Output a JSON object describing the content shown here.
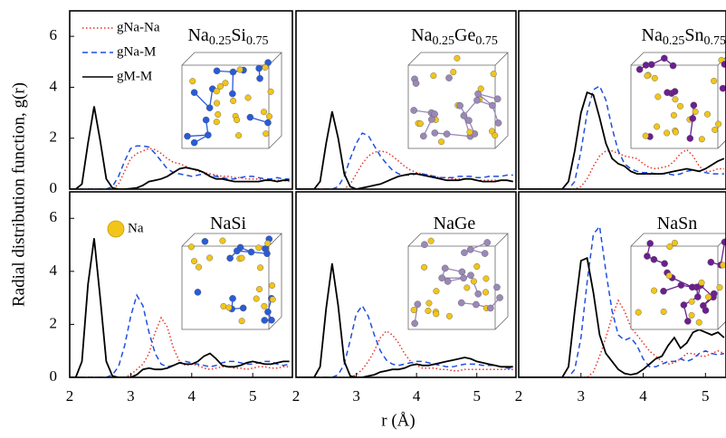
{
  "xlabel": "r (Å)",
  "ylabel": "Radial distribution function, g(r)",
  "chart_data": [
    {
      "type": "line",
      "title": [
        {
          "text": "Na"
        },
        {
          "text": "0.25",
          "sub": true
        },
        {
          "text": "Si"
        },
        {
          "text": "0.75",
          "sub": true
        }
      ],
      "xlim": [
        2,
        5.65
      ],
      "ylim": [
        0,
        7
      ],
      "yticks": [
        0,
        2,
        4,
        6
      ],
      "x": [
        2.0,
        2.1,
        2.2,
        2.3,
        2.4,
        2.5,
        2.6,
        2.7,
        2.8,
        2.9,
        3.0,
        3.1,
        3.2,
        3.3,
        3.4,
        3.5,
        3.6,
        3.7,
        3.8,
        3.9,
        4.0,
        4.1,
        4.2,
        4.3,
        4.4,
        4.5,
        4.6,
        4.7,
        4.8,
        4.9,
        5.0,
        5.1,
        5.2,
        5.3,
        5.4,
        5.5,
        5.6
      ],
      "series": [
        {
          "name": "gNa-Na",
          "color": "#e8322a",
          "linestyle": "dotted",
          "values": [
            0,
            0,
            0,
            0,
            0,
            0,
            0,
            0,
            0.2,
            0.7,
            1.2,
            1.4,
            1.5,
            1.6,
            1.55,
            1.4,
            1.2,
            1.05,
            1.0,
            0.9,
            0.8,
            0.7,
            0.65,
            0.6,
            0.55,
            0.5,
            0.5,
            0.45,
            0.45,
            0.4,
            0.4,
            0.4,
            0.35,
            0.35,
            0.35,
            0.35,
            0.3
          ]
        },
        {
          "name": "gNa-M",
          "color": "#1f4fe0",
          "linestyle": "dashed",
          "values": [
            0,
            0,
            0,
            0,
            0,
            0,
            0,
            0.1,
            0.5,
            1.1,
            1.6,
            1.7,
            1.7,
            1.65,
            1.4,
            1.1,
            0.8,
            0.65,
            0.6,
            0.55,
            0.5,
            0.55,
            0.6,
            0.55,
            0.5,
            0.45,
            0.4,
            0.4,
            0.45,
            0.5,
            0.5,
            0.45,
            0.4,
            0.4,
            0.45,
            0.4,
            0.4
          ]
        },
        {
          "name": "gM-M",
          "color": "#000000",
          "linestyle": "solid",
          "values": [
            0,
            0,
            0.2,
            1.8,
            3.25,
            1.9,
            0.4,
            0.05,
            0,
            0,
            0.02,
            0.05,
            0.15,
            0.3,
            0.35,
            0.4,
            0.5,
            0.65,
            0.8,
            0.85,
            0.8,
            0.75,
            0.65,
            0.5,
            0.4,
            0.4,
            0.35,
            0.3,
            0.3,
            0.3,
            0.3,
            0.3,
            0.35,
            0.35,
            0.3,
            0.35,
            0.35
          ]
        }
      ]
    },
    {
      "type": "line",
      "title": [
        {
          "text": "Na"
        },
        {
          "text": "0.25",
          "sub": true
        },
        {
          "text": "Ge"
        },
        {
          "text": "0.75",
          "sub": true
        }
      ],
      "xlim": [
        2,
        5.65
      ],
      "ylim": [
        0,
        7
      ],
      "x": [
        2.0,
        2.1,
        2.2,
        2.3,
        2.4,
        2.5,
        2.6,
        2.7,
        2.8,
        2.9,
        3.0,
        3.1,
        3.2,
        3.3,
        3.4,
        3.5,
        3.6,
        3.7,
        3.8,
        3.9,
        4.0,
        4.1,
        4.2,
        4.3,
        4.4,
        4.5,
        4.6,
        4.7,
        4.8,
        4.9,
        5.0,
        5.1,
        5.2,
        5.3,
        5.4,
        5.5,
        5.6
      ],
      "series": [
        {
          "color": "#e8322a",
          "linestyle": "dotted",
          "values": [
            0,
            0,
            0,
            0,
            0,
            0,
            0,
            0,
            0,
            0.2,
            0.6,
            1.0,
            1.3,
            1.45,
            1.5,
            1.45,
            1.3,
            1.1,
            0.9,
            0.75,
            0.65,
            0.6,
            0.55,
            0.5,
            0.45,
            0.45,
            0.4,
            0.4,
            0.4,
            0.4,
            0.35,
            0.35,
            0.35,
            0.35,
            0.35,
            0.35,
            0.3
          ]
        },
        {
          "color": "#1f4fe0",
          "linestyle": "dashed",
          "values": [
            0,
            0,
            0,
            0,
            0,
            0,
            0,
            0.1,
            0.5,
            1.2,
            1.8,
            2.2,
            2.1,
            1.7,
            1.3,
            1.0,
            0.75,
            0.6,
            0.55,
            0.55,
            0.6,
            0.6,
            0.55,
            0.5,
            0.45,
            0.45,
            0.45,
            0.5,
            0.5,
            0.5,
            0.45,
            0.45,
            0.5,
            0.5,
            0.5,
            0.55,
            0.55
          ]
        },
        {
          "color": "#000000",
          "linestyle": "solid",
          "values": [
            0,
            0,
            0,
            0,
            0.3,
            1.8,
            3.05,
            2.0,
            0.6,
            0.1,
            0,
            0.05,
            0.1,
            0.15,
            0.2,
            0.3,
            0.4,
            0.5,
            0.55,
            0.6,
            0.6,
            0.55,
            0.5,
            0.45,
            0.4,
            0.35,
            0.35,
            0.35,
            0.4,
            0.4,
            0.35,
            0.3,
            0.3,
            0.3,
            0.35,
            0.35,
            0.3
          ]
        }
      ]
    },
    {
      "type": "line",
      "title": [
        {
          "text": "Na"
        },
        {
          "text": "0.25",
          "sub": true
        },
        {
          "text": "Sn"
        },
        {
          "text": "0.75",
          "sub": true
        }
      ],
      "xlim": [
        2,
        5.33
      ],
      "ylim": [
        0,
        7
      ],
      "x": [
        2.0,
        2.1,
        2.2,
        2.3,
        2.4,
        2.5,
        2.6,
        2.7,
        2.8,
        2.9,
        3.0,
        3.1,
        3.2,
        3.3,
        3.4,
        3.5,
        3.6,
        3.7,
        3.8,
        3.9,
        4.0,
        4.1,
        4.2,
        4.3,
        4.4,
        4.5,
        4.6,
        4.7,
        4.8,
        4.9,
        5.0,
        5.1,
        5.2,
        5.3
      ],
      "series": [
        {
          "color": "#e8322a",
          "linestyle": "dotted",
          "values": [
            0,
            0,
            0,
            0,
            0,
            0,
            0,
            0,
            0,
            0,
            0.1,
            0.4,
            0.9,
            1.3,
            1.5,
            1.5,
            1.4,
            1.3,
            1.25,
            1.2,
            1.0,
            0.85,
            0.8,
            0.85,
            0.9,
            1.1,
            1.4,
            1.55,
            1.3,
            0.9,
            0.7,
            0.7,
            0.8,
            0.8
          ]
        },
        {
          "color": "#1f4fe0",
          "linestyle": "dashed",
          "values": [
            0,
            0,
            0,
            0,
            0,
            0,
            0,
            0,
            0,
            0.3,
            1.5,
            3.0,
            3.9,
            4.05,
            3.5,
            2.4,
            1.5,
            1.0,
            0.8,
            0.7,
            0.65,
            0.65,
            0.6,
            0.6,
            0.6,
            0.55,
            0.6,
            0.7,
            0.75,
            0.7,
            0.65,
            0.6,
            0.6,
            0.6
          ]
        },
        {
          "color": "#000000",
          "linestyle": "solid",
          "values": [
            0,
            0,
            0,
            0,
            0,
            0,
            0,
            0,
            0.3,
            1.5,
            3.0,
            3.8,
            3.7,
            2.8,
            1.8,
            1.2,
            1.0,
            0.9,
            0.7,
            0.6,
            0.6,
            0.6,
            0.6,
            0.6,
            0.65,
            0.7,
            0.75,
            0.8,
            0.75,
            0.7,
            0.8,
            0.95,
            1.1,
            1.2
          ]
        }
      ]
    },
    {
      "type": "line",
      "title": [
        {
          "text": "NaSi"
        }
      ],
      "annotation": "Na",
      "xlim": [
        2,
        5.65
      ],
      "ylim": [
        0,
        7
      ],
      "yticks": [
        0,
        2,
        4,
        6
      ],
      "xticks": [
        2,
        3,
        4,
        5
      ],
      "x": [
        2.0,
        2.1,
        2.2,
        2.3,
        2.4,
        2.5,
        2.6,
        2.7,
        2.8,
        2.9,
        3.0,
        3.1,
        3.2,
        3.3,
        3.4,
        3.5,
        3.6,
        3.7,
        3.8,
        3.9,
        4.0,
        4.1,
        4.2,
        4.3,
        4.4,
        4.5,
        4.6,
        4.7,
        4.8,
        4.9,
        5.0,
        5.1,
        5.2,
        5.3,
        5.4,
        5.5,
        5.6
      ],
      "series": [
        {
          "color": "#e8322a",
          "linestyle": "dotted",
          "values": [
            0,
            0,
            0,
            0,
            0,
            0,
            0,
            0,
            0,
            0,
            0.1,
            0.3,
            0.5,
            0.9,
            1.7,
            2.25,
            1.9,
            1.1,
            0.6,
            0.45,
            0.5,
            0.45,
            0.35,
            0.3,
            0.35,
            0.4,
            0.4,
            0.35,
            0.35,
            0.3,
            0.35,
            0.4,
            0.4,
            0.35,
            0.35,
            0.4,
            0.4
          ]
        },
        {
          "color": "#1f4fe0",
          "linestyle": "dashed",
          "values": [
            0,
            0,
            0,
            0,
            0,
            0,
            0,
            0.1,
            0.4,
            1.2,
            2.3,
            3.1,
            2.7,
            1.7,
            0.9,
            0.5,
            0.4,
            0.45,
            0.55,
            0.6,
            0.55,
            0.5,
            0.45,
            0.4,
            0.45,
            0.55,
            0.6,
            0.6,
            0.55,
            0.5,
            0.5,
            0.55,
            0.6,
            0.6,
            0.5,
            0.45,
            0.5
          ]
        },
        {
          "color": "#000000",
          "linestyle": "solid",
          "values": [
            0,
            0,
            0.6,
            3.5,
            5.25,
            3.0,
            0.6,
            0.05,
            0,
            0,
            0,
            0.1,
            0.3,
            0.35,
            0.3,
            0.3,
            0.35,
            0.45,
            0.55,
            0.5,
            0.5,
            0.6,
            0.8,
            0.9,
            0.7,
            0.45,
            0.4,
            0.4,
            0.45,
            0.55,
            0.6,
            0.55,
            0.5,
            0.5,
            0.55,
            0.6,
            0.6
          ]
        }
      ]
    },
    {
      "type": "line",
      "title": [
        {
          "text": "NaGe"
        }
      ],
      "xlim": [
        2,
        5.65
      ],
      "ylim": [
        0,
        7
      ],
      "xticks": [
        2,
        3,
        4,
        5
      ],
      "x": [
        2.0,
        2.1,
        2.2,
        2.3,
        2.4,
        2.5,
        2.6,
        2.7,
        2.8,
        2.9,
        3.0,
        3.1,
        3.2,
        3.3,
        3.4,
        3.5,
        3.6,
        3.7,
        3.8,
        3.9,
        4.0,
        4.1,
        4.2,
        4.3,
        4.4,
        4.5,
        4.6,
        4.7,
        4.8,
        4.9,
        5.0,
        5.1,
        5.2,
        5.3,
        5.4,
        5.5,
        5.6
      ],
      "series": [
        {
          "color": "#e8322a",
          "linestyle": "dotted",
          "values": [
            0,
            0,
            0,
            0,
            0,
            0,
            0,
            0,
            0,
            0,
            0.1,
            0.3,
            0.6,
            1.0,
            1.5,
            1.75,
            1.6,
            1.3,
            0.9,
            0.6,
            0.45,
            0.35,
            0.35,
            0.35,
            0.3,
            0.3,
            0.25,
            0.25,
            0.3,
            0.3,
            0.3,
            0.3,
            0.3,
            0.3,
            0.3,
            0.3,
            0.3
          ]
        },
        {
          "color": "#1f4fe0",
          "linestyle": "dashed",
          "values": [
            0,
            0,
            0,
            0,
            0,
            0,
            0,
            0.1,
            0.5,
            1.4,
            2.4,
            2.7,
            2.3,
            1.6,
            1.0,
            0.65,
            0.5,
            0.45,
            0.5,
            0.55,
            0.6,
            0.6,
            0.55,
            0.5,
            0.45,
            0.4,
            0.4,
            0.45,
            0.5,
            0.5,
            0.5,
            0.45,
            0.45,
            0.45,
            0.4,
            0.35,
            0.35
          ]
        },
        {
          "color": "#000000",
          "linestyle": "solid",
          "values": [
            0,
            0,
            0,
            0,
            0.4,
            2.6,
            4.3,
            2.7,
            0.6,
            0.05,
            0,
            0,
            0.05,
            0.1,
            0.2,
            0.25,
            0.3,
            0.3,
            0.35,
            0.45,
            0.5,
            0.45,
            0.45,
            0.5,
            0.55,
            0.6,
            0.65,
            0.7,
            0.75,
            0.7,
            0.6,
            0.55,
            0.5,
            0.45,
            0.4,
            0.4,
            0.4
          ]
        }
      ]
    },
    {
      "type": "line",
      "title": [
        {
          "text": "NaSn"
        }
      ],
      "xlim": [
        2,
        5.33
      ],
      "ylim": [
        0,
        7
      ],
      "xticks": [
        2,
        3,
        4,
        5
      ],
      "x": [
        2.0,
        2.1,
        2.2,
        2.3,
        2.4,
        2.5,
        2.6,
        2.7,
        2.8,
        2.9,
        3.0,
        3.1,
        3.2,
        3.3,
        3.4,
        3.5,
        3.6,
        3.7,
        3.8,
        3.9,
        4.0,
        4.1,
        4.2,
        4.3,
        4.4,
        4.5,
        4.6,
        4.7,
        4.8,
        4.9,
        5.0,
        5.1,
        5.2,
        5.3
      ],
      "series": [
        {
          "color": "#e8322a",
          "linestyle": "dotted",
          "values": [
            0,
            0,
            0,
            0,
            0,
            0,
            0,
            0,
            0,
            0,
            0,
            0,
            0.2,
            0.8,
            1.5,
            2.3,
            2.9,
            2.5,
            1.9,
            1.6,
            1.3,
            1.0,
            0.8,
            0.6,
            0.5,
            0.55,
            0.7,
            0.9,
            0.9,
            0.8,
            0.8,
            0.9,
            1.0,
            0.9
          ]
        },
        {
          "color": "#1f4fe0",
          "linestyle": "dashed",
          "values": [
            0,
            0,
            0,
            0,
            0,
            0,
            0,
            0,
            0,
            0.3,
            1.5,
            3.6,
            5.4,
            5.7,
            4.0,
            2.5,
            1.6,
            1.4,
            1.5,
            1.2,
            0.7,
            0.4,
            0.4,
            0.5,
            0.6,
            0.6,
            0.7,
            0.6,
            0.7,
            0.9,
            1.0,
            0.9,
            0.85,
            0.9
          ]
        },
        {
          "color": "#000000",
          "linestyle": "solid",
          "values": [
            0,
            0,
            0,
            0,
            0,
            0,
            0,
            0,
            0.4,
            2.5,
            4.4,
            4.5,
            3.2,
            1.6,
            0.9,
            0.6,
            0.3,
            0.15,
            0.1,
            0.15,
            0.3,
            0.5,
            0.7,
            0.8,
            1.2,
            1.5,
            1.1,
            1.3,
            1.7,
            1.8,
            1.7,
            1.6,
            1.7,
            1.5
          ]
        }
      ]
    }
  ]
}
